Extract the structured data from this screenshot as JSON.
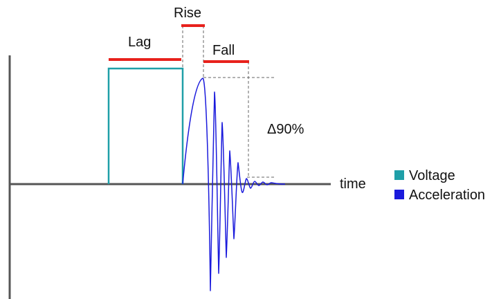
{
  "colors": {
    "voltage": "#1f9fa8",
    "acceleration": "#1a1adc",
    "span_bars": "#e8211c",
    "axes": "#555555"
  },
  "labels": {
    "lag": "Lag",
    "rise": "Rise",
    "fall": "Fall",
    "delta": "Δ90%",
    "time_axis": "time"
  },
  "legend": {
    "items": [
      {
        "label": "Voltage",
        "color": "#1f9fa8"
      },
      {
        "label": "Acceleration",
        "color": "#1a1adc"
      }
    ]
  }
}
